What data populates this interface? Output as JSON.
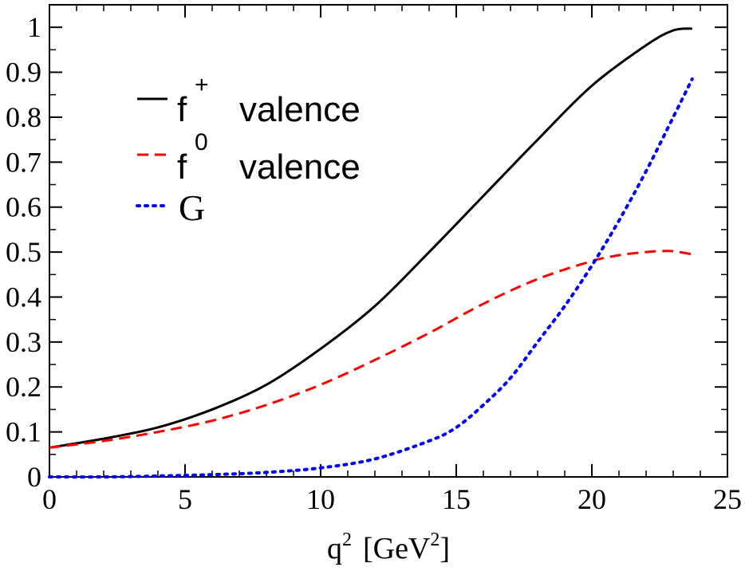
{
  "chart_data": {
    "type": "line",
    "title": "",
    "xlabel": "q² [GeV²]",
    "xlabel_base": "q",
    "xlabel_exp": "2",
    "xlabel_unit_open": "[GeV",
    "xlabel_unit_exp": "2",
    "xlabel_unit_close": "]",
    "ylabel": "",
    "xlim": [
      0,
      25
    ],
    "ylim": [
      0,
      1.05
    ],
    "grid": false,
    "legend_position": "top-left",
    "x_ticks": [
      0,
      5,
      10,
      15,
      20,
      25
    ],
    "x_tick_labels": [
      "0",
      "5",
      "10",
      "15",
      "20",
      "25"
    ],
    "y_ticks": [
      0,
      0.1,
      0.2,
      0.3,
      0.4,
      0.5,
      0.6,
      0.7,
      0.8,
      0.9,
      1
    ],
    "y_tick_labels": [
      "0",
      "0.1",
      "0.2",
      "0.3",
      "0.4",
      "0.5",
      "0.6",
      "0.7",
      "0.8",
      "0.9",
      "1"
    ],
    "series": [
      {
        "name": "f⁺ valence",
        "legend_base": "f",
        "legend_sup": "+",
        "legend_text": "valence",
        "color": "#000000",
        "style": "solid",
        "x": [
          0,
          2,
          4,
          6,
          8,
          10,
          12,
          14,
          16,
          18,
          20,
          22,
          23,
          23.7
        ],
        "y": [
          0.065,
          0.085,
          0.11,
          0.15,
          0.205,
          0.285,
          0.38,
          0.5,
          0.625,
          0.75,
          0.87,
          0.96,
          0.993,
          0.997
        ]
      },
      {
        "name": "f⁰ valence",
        "legend_base": "f",
        "legend_sup": "0",
        "legend_text": "valence",
        "color": "#ff0000",
        "style": "dashed",
        "x": [
          0,
          2,
          4,
          6,
          8,
          10,
          12,
          14,
          16,
          18,
          20,
          21,
          22,
          22.5,
          23,
          23.7
        ],
        "y": [
          0.065,
          0.08,
          0.1,
          0.125,
          0.16,
          0.205,
          0.26,
          0.32,
          0.385,
          0.44,
          0.48,
          0.493,
          0.5,
          0.502,
          0.502,
          0.495
        ]
      },
      {
        "name": "G",
        "legend_base": "G",
        "legend_sup": "",
        "legend_text": "",
        "color": "#0000ff",
        "style": "dotted",
        "x": [
          0,
          2,
          4,
          6,
          8,
          10,
          12,
          14,
          15,
          16,
          17,
          18,
          19,
          20,
          21,
          22,
          23,
          23.7
        ],
        "y": [
          0,
          0,
          0.002,
          0.005,
          0.01,
          0.02,
          0.04,
          0.08,
          0.11,
          0.16,
          0.22,
          0.3,
          0.38,
          0.47,
          0.57,
          0.68,
          0.8,
          0.885
        ]
      }
    ]
  }
}
